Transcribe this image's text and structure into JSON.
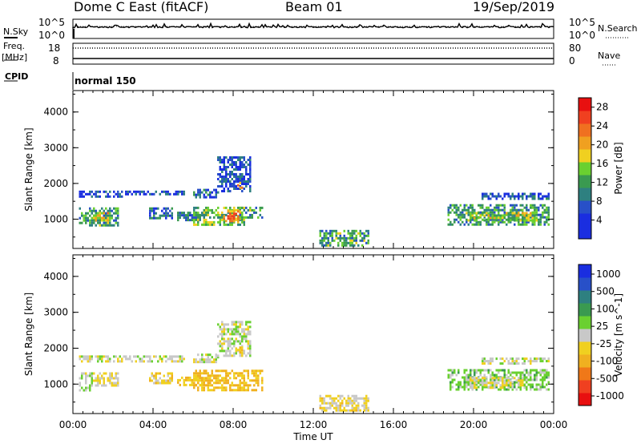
{
  "header": {
    "station": "Dome C East (fitACF)",
    "beam": "Beam 01",
    "date": "19/Sep/2019"
  },
  "left_labels": {
    "nsky": "N.Sky",
    "freq": "Freq.",
    "freq_unit": "[MHz]",
    "cpid": "CPID"
  },
  "right_labels": {
    "nsearch": "N.Search",
    "nave": "Nave"
  },
  "noise_ticks": {
    "top": "10^5",
    "bottom": "10^0"
  },
  "freq_ticks": {
    "top": "18",
    "bottom": "8"
  },
  "nave_ticks": {
    "top": "80",
    "bottom": "0"
  },
  "cpid_text": "normal 150",
  "colors": {
    "power": [
      "#1a2ee0",
      "#1a2ee0",
      "#2850c8",
      "#2e8080",
      "#3a9a50",
      "#6ad030",
      "#f0d020",
      "#f0a020",
      "#f07020",
      "#f04020",
      "#e81010"
    ],
    "velocity": [
      "#e81010",
      "#f04020",
      "#f07818",
      "#f0b020",
      "#f0d020",
      "#c8c8c8",
      "#6ad030",
      "#3a9a50",
      "#2e8080",
      "#2850c8",
      "#1a2ee0"
    ]
  },
  "chart_data": [
    {
      "type": "heatmap",
      "title": "Power",
      "xlabel": "Time UT",
      "ylabel": "Slant Range [km]",
      "x_ticks": [
        "00:00",
        "04:00",
        "08:00",
        "12:00",
        "16:00",
        "20:00",
        "00:00"
      ],
      "y_ticks": [
        "1000",
        "2000",
        "3000",
        "4000"
      ],
      "ylim": [
        180,
        4600
      ],
      "colorbar": {
        "label": "Power [dB]",
        "ticks": [
          "4",
          "8",
          "12",
          "16",
          "20",
          "24",
          "28"
        ],
        "range": [
          0,
          30
        ]
      },
      "blobs": [
        {
          "x": [
            0.3,
            2.5
          ],
          "y": [
            1650,
            1800
          ],
          "value": 6
        },
        {
          "x": [
            2.6,
            5.6
          ],
          "y": [
            1700,
            1800
          ],
          "value": 5
        },
        {
          "x": [
            0.3,
            2.3
          ],
          "y": [
            820,
            1330
          ],
          "value": 12
        },
        {
          "x": [
            1.0,
            1.8
          ],
          "y": [
            960,
            1200
          ],
          "value": 17
        },
        {
          "x": [
            3.8,
            5.0
          ],
          "y": [
            1000,
            1330
          ],
          "value": 8
        },
        {
          "x": [
            5.2,
            6.6
          ],
          "y": [
            980,
            1210
          ],
          "value": 10
        },
        {
          "x": [
            6.0,
            8.6
          ],
          "y": [
            860,
            1350
          ],
          "value": 14
        },
        {
          "x": [
            7.4,
            8.4
          ],
          "y": [
            960,
            1250
          ],
          "value": 22
        },
        {
          "x": [
            8.3,
            9.5
          ],
          "y": [
            1050,
            1350
          ],
          "value": 12
        },
        {
          "x": [
            6.0,
            7.3
          ],
          "y": [
            1620,
            1850
          ],
          "value": 8
        },
        {
          "x": [
            7.2,
            8.9
          ],
          "y": [
            1800,
            2760
          ],
          "value": 6
        },
        {
          "x": [
            8.2,
            8.5
          ],
          "y": [
            1900,
            2050
          ],
          "value": 20
        },
        {
          "x": [
            18.7,
            23.8
          ],
          "y": [
            880,
            1420
          ],
          "value": 11
        },
        {
          "x": [
            19.6,
            23.2
          ],
          "y": [
            960,
            1200
          ],
          "value": 16
        },
        {
          "x": [
            20.4,
            23.8
          ],
          "y": [
            1600,
            1740
          ],
          "value": 6
        },
        {
          "x": [
            12.3,
            14.8
          ],
          "y": [
            280,
            700
          ],
          "value": 12
        }
      ]
    },
    {
      "type": "heatmap",
      "title": "Velocity",
      "xlabel": "Time UT",
      "ylabel": "Slant Range [km]",
      "x_ticks": [
        "00:00",
        "04:00",
        "08:00",
        "12:00",
        "16:00",
        "20:00",
        "00:00"
      ],
      "y_ticks": [
        "1000",
        "2000",
        "3000",
        "4000"
      ],
      "ylim": [
        180,
        4600
      ],
      "colorbar": {
        "label": "Velocity [m s^-1]",
        "ticks": [
          "1000",
          "500",
          "100",
          "25",
          "-25",
          "-100",
          "-500",
          "-1000"
        ],
        "range": [
          -1200,
          1200
        ]
      },
      "blobs": [
        {
          "x": [
            0.3,
            5.6
          ],
          "y": [
            1650,
            1800
          ],
          "value": 0
        },
        {
          "x": [
            0.3,
            1.0
          ],
          "y": [
            800,
            1330
          ],
          "value": 60
        },
        {
          "x": [
            1.0,
            2.3
          ],
          "y": [
            950,
            1330
          ],
          "value": -120
        },
        {
          "x": [
            3.8,
            5.0
          ],
          "y": [
            1000,
            1330
          ],
          "value": -200
        },
        {
          "x": [
            5.2,
            6.6
          ],
          "y": [
            980,
            1210
          ],
          "value": -300
        },
        {
          "x": [
            6.0,
            9.5
          ],
          "y": [
            860,
            1400
          ],
          "value": -350
        },
        {
          "x": [
            6.0,
            7.3
          ],
          "y": [
            1620,
            1850
          ],
          "value": 0
        },
        {
          "x": [
            7.2,
            8.9
          ],
          "y": [
            1800,
            2760
          ],
          "value": 0
        },
        {
          "x": [
            8.2,
            8.5
          ],
          "y": [
            1900,
            2050
          ],
          "value": -300
        },
        {
          "x": [
            18.7,
            23.8
          ],
          "y": [
            880,
            1420
          ],
          "value": 200
        },
        {
          "x": [
            19.8,
            22.6
          ],
          "y": [
            900,
            1200
          ],
          "value": -80
        },
        {
          "x": [
            20.4,
            23.8
          ],
          "y": [
            1600,
            1740
          ],
          "value": 0
        },
        {
          "x": [
            12.3,
            14.8
          ],
          "y": [
            280,
            700
          ],
          "value": -150
        }
      ]
    }
  ]
}
